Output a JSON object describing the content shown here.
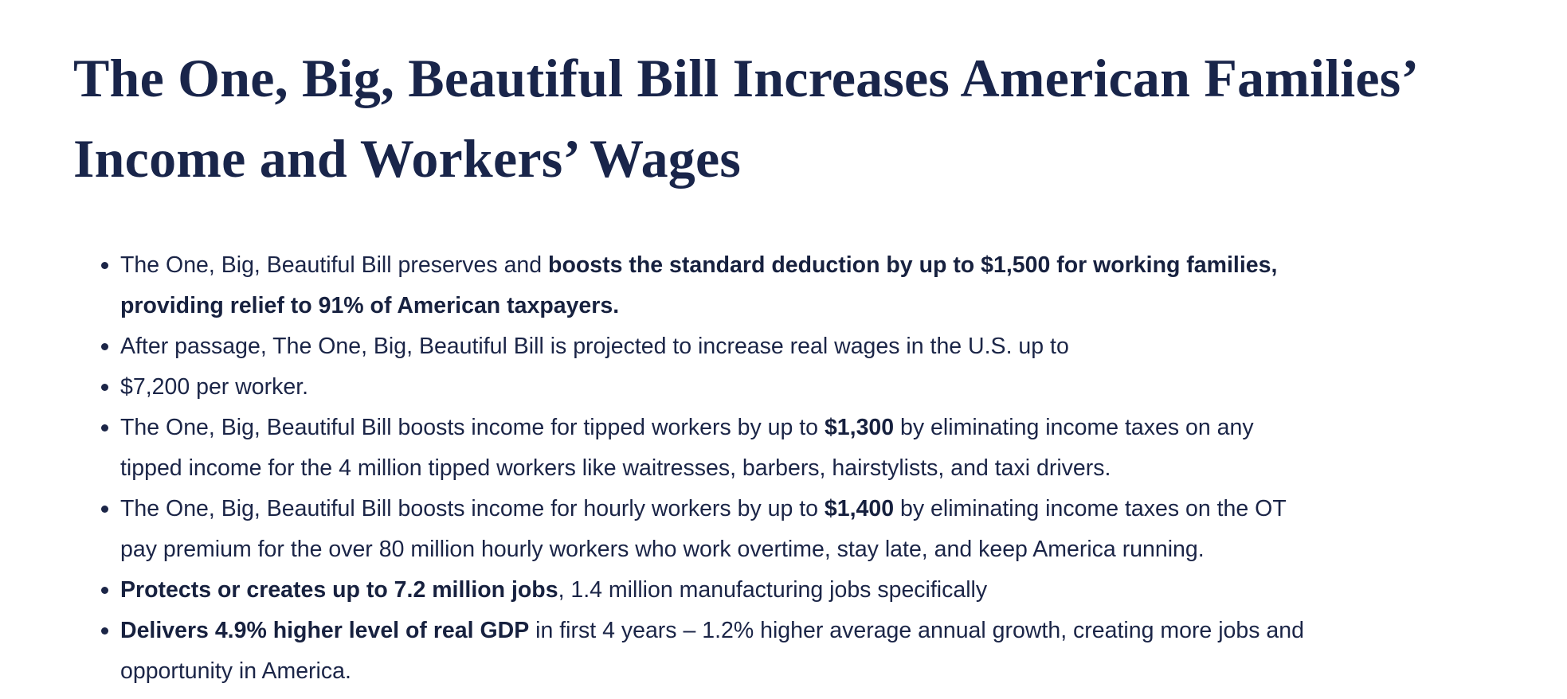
{
  "title": {
    "line1": "The One, Big, Beautiful Bill Increases American Families’",
    "line2": "Income and Workers’ Wages"
  },
  "bullets": [
    {
      "text_a": "The One, Big, Beautiful Bill preserves and ",
      "bold_a": "boosts the standard deduction by up to $1,500 for working families,",
      "bold_b": "providing relief to 91% of American taxpayers."
    },
    {
      "text_a": "After passage, The One, Big, Beautiful Bill is projected to increase real wages in the U.S. up to"
    },
    {
      "text_a": "$7,200 per worker."
    },
    {
      "text_a": "The One, Big, Beautiful Bill boosts income for tipped workers by up to ",
      "bold_a": "$1,300",
      "text_b": " by eliminating income taxes on any",
      "text_c": "tipped income for the 4 million tipped workers like waitresses, barbers, hairstylists, and taxi drivers."
    },
    {
      "text_a": "The One, Big, Beautiful Bill boosts income for hourly workers by up to ",
      "bold_a": "$1,400",
      "text_b": " by eliminating income taxes on the OT",
      "text_c": "pay premium for the over 80 million hourly workers who work overtime, stay late, and keep America running."
    },
    {
      "bold_a": "Protects or creates up to 7.2 million jobs",
      "text_a": ", 1.4 million manufacturing jobs specifically"
    },
    {
      "bold_a": "Delivers 4.9% higher level of real GDP",
      "text_a": " in first 4 years – 1.2% higher average annual growth, creating more jobs and",
      "text_b": "opportunity in America."
    }
  ]
}
